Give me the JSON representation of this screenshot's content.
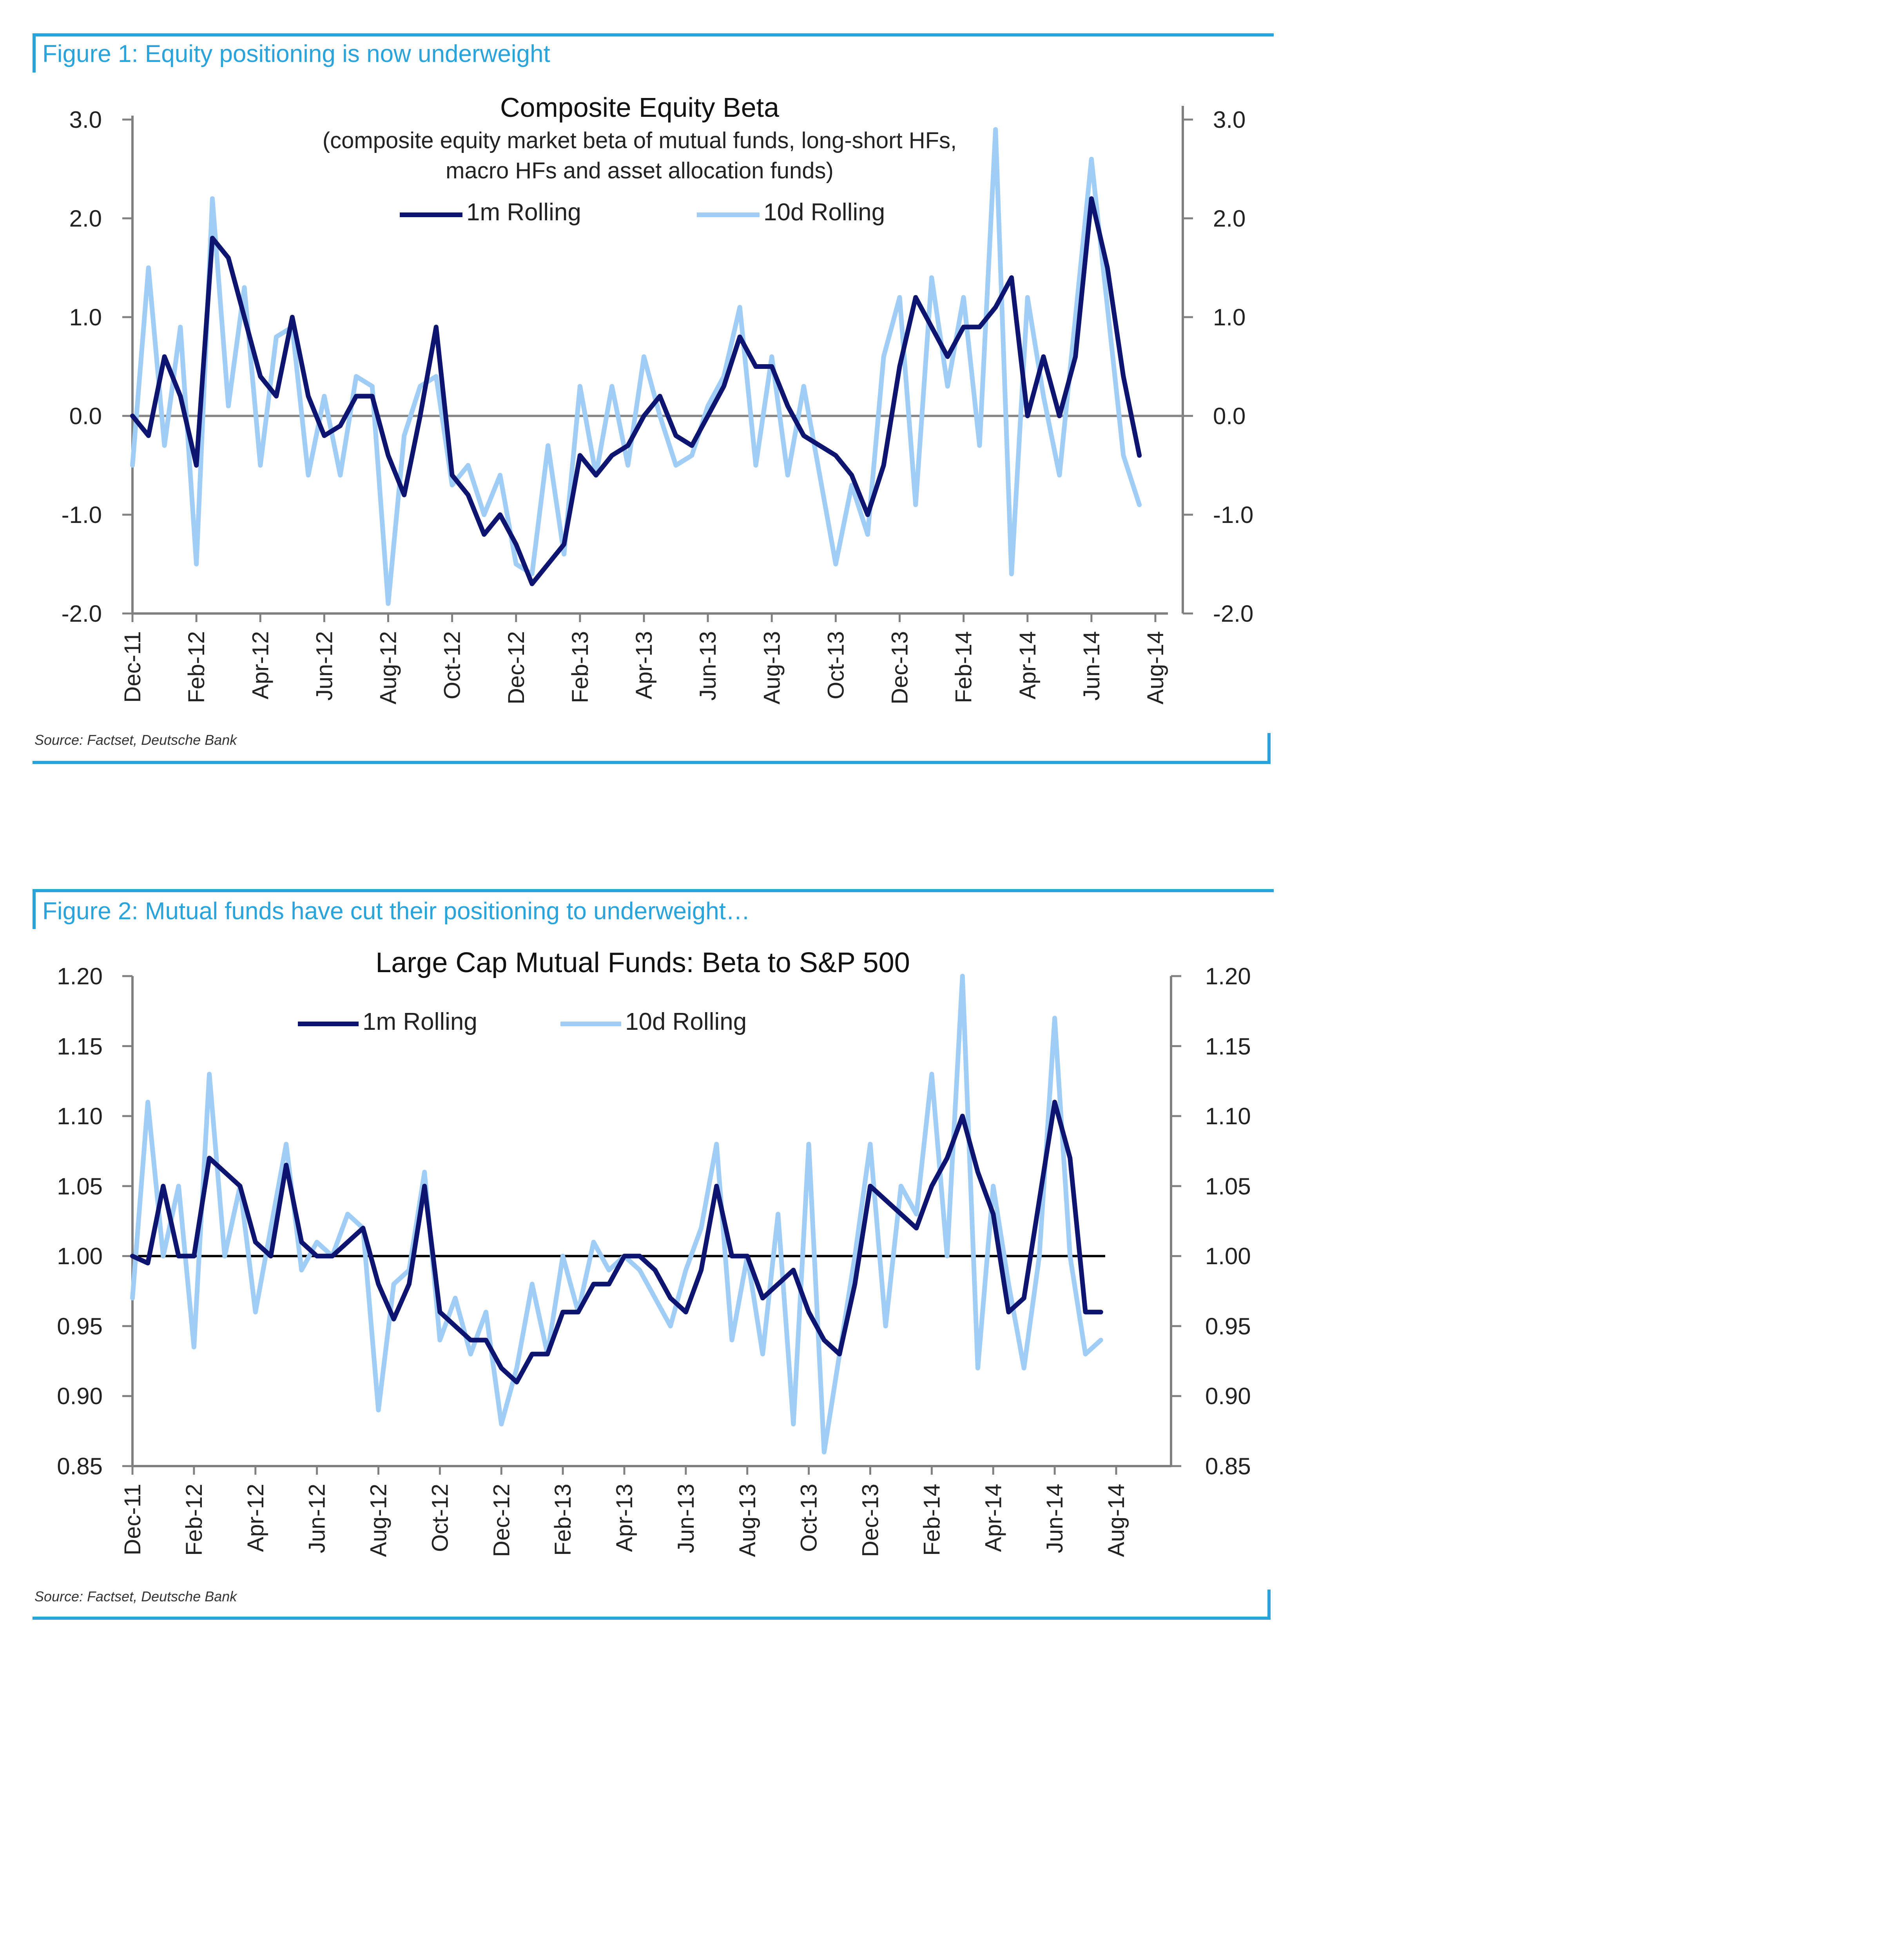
{
  "figures": [
    {
      "caption": "Figure 1: Equity positioning is now underweight",
      "source": "Source: Factset, Deutsche Bank"
    },
    {
      "caption": "Figure 2: Mutual funds have cut their positioning to underweight…",
      "source": "Source: Factset, Deutsche Bank"
    }
  ],
  "colors": {
    "accent": "#29a3db",
    "series_1m": "#0d1570",
    "series_10d": "#9fcdf5",
    "axis": "#808080",
    "refline": "#8a8a8a",
    "refline2": "#000000"
  },
  "chart_data": [
    {
      "type": "line",
      "title": "Composite Equity Beta",
      "subtitle": [
        "(composite equity market beta of mutual funds, long-short HFs,",
        "macro HFs and asset allocation funds)"
      ],
      "xlabel": "",
      "ylabel": "",
      "x_ticks": [
        "Dec-11",
        "Feb-12",
        "Apr-12",
        "Jun-12",
        "Aug-12",
        "Oct-12",
        "Dec-12",
        "Feb-13",
        "Apr-13",
        "Jun-13",
        "Aug-13",
        "Oct-13",
        "Dec-13",
        "Feb-14",
        "Apr-14",
        "Jun-14",
        "Aug-14"
      ],
      "y_ticks": [
        "3.0",
        "2.0",
        "1.0",
        "0.0",
        "-1.0",
        "-2.0"
      ],
      "ylim": [
        -2.0,
        3.0
      ],
      "x_range": [
        0,
        32
      ],
      "x_units": "months since Dec-11",
      "reference_line": 0.0,
      "legend": "top-center",
      "grid": false,
      "series": [
        {
          "name": "1m Rolling",
          "x": [
            0,
            0.5,
            1,
            1.5,
            2,
            2.5,
            3,
            3.5,
            4,
            4.5,
            5,
            5.5,
            6,
            6.5,
            7,
            7.5,
            8,
            8.5,
            9,
            9.5,
            10,
            10.5,
            11,
            11.5,
            12,
            12.5,
            13,
            13.5,
            14,
            14.5,
            15,
            15.5,
            16,
            16.5,
            17,
            17.5,
            18,
            18.5,
            19,
            19.5,
            20,
            20.5,
            21,
            21.5,
            22,
            22.5,
            23,
            23.5,
            24,
            24.5,
            25,
            25.5,
            26,
            26.5,
            27,
            27.5,
            28,
            28.5,
            29,
            29.5,
            30,
            30.5,
            31,
            31.5
          ],
          "values": [
            0.0,
            -0.2,
            0.6,
            0.2,
            -0.5,
            1.8,
            1.6,
            1.0,
            0.4,
            0.2,
            1.0,
            0.2,
            -0.2,
            -0.1,
            0.2,
            0.2,
            -0.4,
            -0.8,
            0.0,
            0.9,
            -0.6,
            -0.8,
            -1.2,
            -1.0,
            -1.3,
            -1.7,
            -1.5,
            -1.3,
            -0.4,
            -0.6,
            -0.4,
            -0.3,
            0.0,
            0.2,
            -0.2,
            -0.3,
            0.0,
            0.3,
            0.8,
            0.5,
            0.5,
            0.1,
            -0.2,
            -0.3,
            -0.4,
            -0.6,
            -1.0,
            -0.5,
            0.5,
            1.2,
            0.9,
            0.6,
            0.9,
            0.9,
            1.1,
            1.4,
            0.0,
            0.6,
            0.0,
            0.6,
            2.2,
            1.5,
            0.4,
            -0.4
          ]
        },
        {
          "name": "10d Rolling",
          "x": [
            0,
            0.5,
            1,
            1.5,
            2,
            2.5,
            3,
            3.5,
            4,
            4.5,
            5,
            5.5,
            6,
            6.5,
            7,
            7.5,
            8,
            8.5,
            9,
            9.5,
            10,
            10.5,
            11,
            11.5,
            12,
            12.5,
            13,
            13.5,
            14,
            14.5,
            15,
            15.5,
            16,
            16.5,
            17,
            17.5,
            18,
            18.5,
            19,
            19.5,
            20,
            20.5,
            21,
            21.5,
            22,
            22.5,
            23,
            23.5,
            24,
            24.5,
            25,
            25.5,
            26,
            26.5,
            27,
            27.5,
            28,
            28.5,
            29,
            29.5,
            30,
            30.5,
            31,
            31.5
          ],
          "values": [
            -0.5,
            1.5,
            -0.3,
            0.9,
            -1.5,
            2.2,
            0.1,
            1.3,
            -0.5,
            0.8,
            0.9,
            -0.6,
            0.2,
            -0.6,
            0.4,
            0.3,
            -1.9,
            -0.2,
            0.3,
            0.4,
            -0.7,
            -0.5,
            -1.0,
            -0.6,
            -1.5,
            -1.6,
            -0.3,
            -1.4,
            0.3,
            -0.6,
            0.3,
            -0.5,
            0.6,
            0.0,
            -0.5,
            -0.4,
            0.1,
            0.4,
            1.1,
            -0.5,
            0.6,
            -0.6,
            0.3,
            -0.6,
            -1.5,
            -0.7,
            -1.2,
            0.6,
            1.2,
            -0.9,
            1.4,
            0.3,
            1.2,
            -0.3,
            2.9,
            -1.6,
            1.2,
            0.2,
            -0.6,
            1.0,
            2.6,
            1.1,
            -0.4,
            -0.9
          ]
        }
      ]
    },
    {
      "type": "line",
      "title": "Large Cap Mutual Funds: Beta to S&P 500",
      "xlabel": "",
      "ylabel": "",
      "x_ticks": [
        "Dec-11",
        "Feb-12",
        "Apr-12",
        "Jun-12",
        "Aug-12",
        "Oct-12",
        "Dec-12",
        "Feb-13",
        "Apr-13",
        "Jun-13",
        "Aug-13",
        "Oct-13",
        "Dec-13",
        "Feb-14",
        "Apr-14",
        "Jun-14",
        "Aug-14"
      ],
      "y_ticks": [
        "1.20",
        "1.15",
        "1.10",
        "1.05",
        "1.00",
        "0.95",
        "0.90",
        "0.85"
      ],
      "ylim": [
        0.85,
        1.2
      ],
      "x_range": [
        0,
        32
      ],
      "x_units": "months since Dec-11",
      "reference_line": 1.0,
      "legend": "top-left",
      "grid": false,
      "series": [
        {
          "name": "1m Rolling",
          "x": [
            0,
            0.5,
            1,
            1.5,
            2,
            2.5,
            3,
            3.5,
            4,
            4.5,
            5,
            5.5,
            6,
            6.5,
            7,
            7.5,
            8,
            8.5,
            9,
            9.5,
            10,
            10.5,
            11,
            11.5,
            12,
            12.5,
            13,
            13.5,
            14,
            14.5,
            15,
            15.5,
            16,
            16.5,
            17,
            17.5,
            18,
            18.5,
            19,
            19.5,
            20,
            20.5,
            21,
            21.5,
            22,
            22.5,
            23,
            23.5,
            24,
            24.5,
            25,
            25.5,
            26,
            26.5,
            27,
            27.5,
            28,
            28.5,
            29,
            29.5,
            30,
            30.5,
            31,
            31.5
          ],
          "values": [
            1.0,
            0.995,
            1.05,
            1.0,
            1.0,
            1.07,
            1.06,
            1.05,
            1.01,
            1.0,
            1.065,
            1.01,
            1.0,
            1.0,
            1.01,
            1.02,
            0.98,
            0.955,
            0.98,
            1.05,
            0.96,
            0.95,
            0.94,
            0.94,
            0.92,
            0.91,
            0.93,
            0.93,
            0.96,
            0.96,
            0.98,
            0.98,
            1.0,
            1.0,
            0.99,
            0.97,
            0.96,
            0.99,
            1.05,
            1.0,
            1.0,
            0.97,
            0.98,
            0.99,
            0.96,
            0.94,
            0.93,
            0.98,
            1.05,
            1.04,
            1.03,
            1.02,
            1.05,
            1.07,
            1.1,
            1.06,
            1.03,
            0.96,
            0.97,
            1.04,
            1.11,
            1.07,
            0.96,
            0.96
          ]
        },
        {
          "name": "10d Rolling",
          "x": [
            0,
            0.5,
            1,
            1.5,
            2,
            2.5,
            3,
            3.5,
            4,
            4.5,
            5,
            5.5,
            6,
            6.5,
            7,
            7.5,
            8,
            8.5,
            9,
            9.5,
            10,
            10.5,
            11,
            11.5,
            12,
            12.5,
            13,
            13.5,
            14,
            14.5,
            15,
            15.5,
            16,
            16.5,
            17,
            17.5,
            18,
            18.5,
            19,
            19.5,
            20,
            20.5,
            21,
            21.5,
            22,
            22.5,
            23,
            23.5,
            24,
            24.5,
            25,
            25.5,
            26,
            26.5,
            27,
            27.5,
            28,
            28.5,
            29,
            29.5,
            30,
            30.5,
            31,
            31.5
          ],
          "values": [
            0.97,
            1.11,
            1.0,
            1.05,
            0.935,
            1.13,
            1.0,
            1.05,
            0.96,
            1.02,
            1.08,
            0.99,
            1.01,
            1.0,
            1.03,
            1.02,
            0.89,
            0.98,
            0.99,
            1.06,
            0.94,
            0.97,
            0.93,
            0.96,
            0.88,
            0.92,
            0.98,
            0.93,
            1.0,
            0.96,
            1.01,
            0.99,
            1.0,
            0.99,
            0.97,
            0.95,
            0.99,
            1.02,
            1.08,
            0.94,
            1.0,
            0.93,
            1.03,
            0.88,
            1.08,
            0.86,
            0.93,
            1.0,
            1.08,
            0.95,
            1.05,
            1.03,
            1.13,
            1.0,
            1.2,
            0.92,
            1.05,
            0.98,
            0.92,
            1.0,
            1.17,
            1.0,
            0.93,
            0.94
          ]
        }
      ]
    }
  ]
}
